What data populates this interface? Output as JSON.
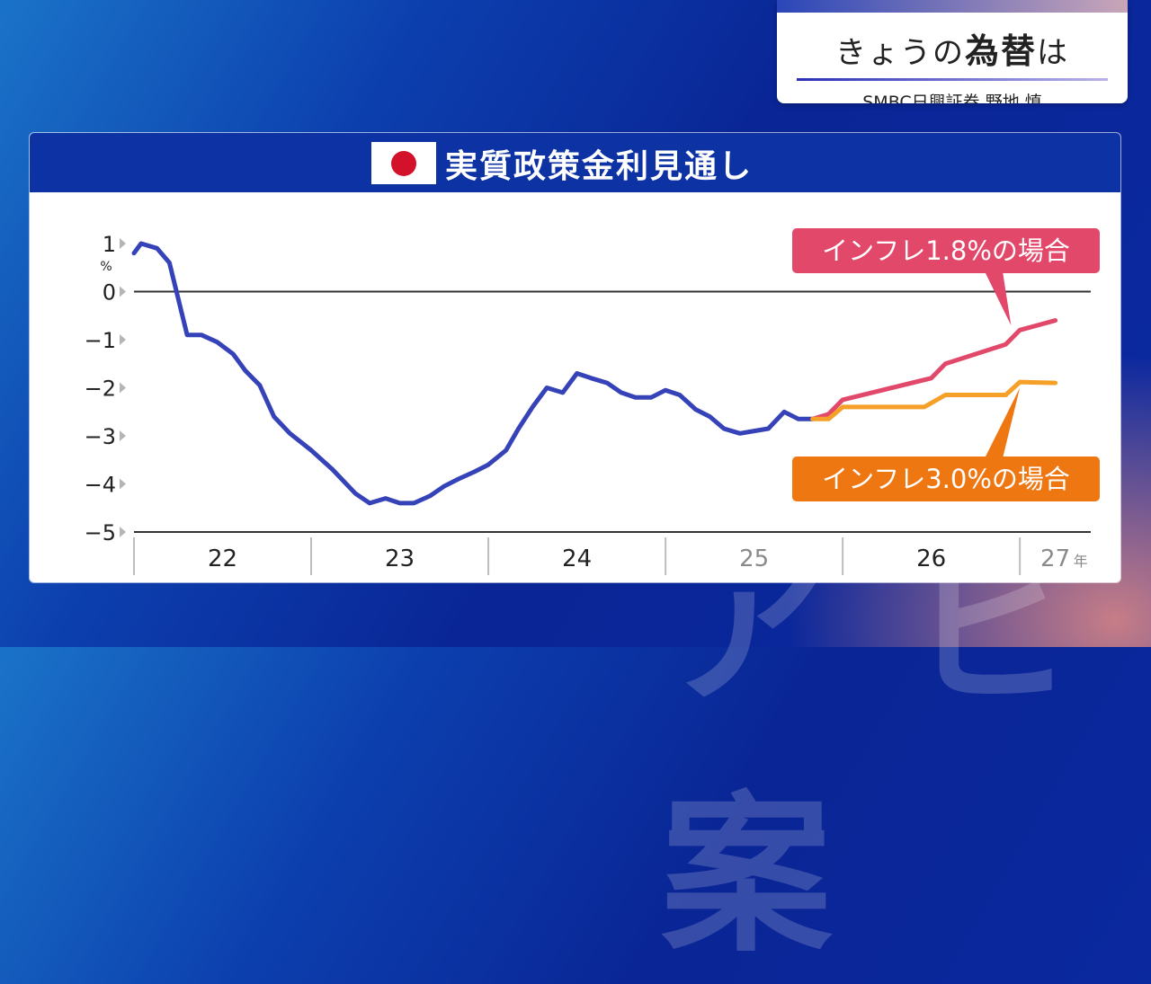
{
  "corner": {
    "title_prefix": "きょうの",
    "title_bold": "為替",
    "title_suffix": "は",
    "subtitle": "SMBC日興証券 野地 慎"
  },
  "watermark": "ア ビ 案",
  "colors": {
    "header_bg": "#0d32a3",
    "history_line": "#3542b8",
    "scenario_high": "#e2486a",
    "scenario_low": "#f5a028",
    "callout_low_bg": "#ee7712",
    "flag_red": "#d3112b"
  },
  "chart_data": {
    "type": "line",
    "title": "実質政策金利見通し",
    "flag_icon": "japan-flag-icon",
    "ylim": [
      -5,
      1
    ],
    "yticks": [
      {
        "value": 1,
        "label": "1"
      },
      {
        "value": 0,
        "label": "0"
      },
      {
        "value": -1,
        "label": "−1"
      },
      {
        "value": -2,
        "label": "−2"
      },
      {
        "value": -3,
        "label": "−3"
      },
      {
        "value": -4,
        "label": "−4"
      },
      {
        "value": -5,
        "label": "−5"
      }
    ],
    "yunit": "%",
    "xlim": [
      2022.0,
      2027.4
    ],
    "xticks": [
      {
        "label": "22",
        "pos": 2022.5,
        "muted": false
      },
      {
        "label": "23",
        "pos": 2023.5,
        "muted": false
      },
      {
        "label": "24",
        "pos": 2024.5,
        "muted": false
      },
      {
        "label": "25",
        "pos": 2025.5,
        "muted": true
      },
      {
        "label": "26",
        "pos": 2026.5,
        "muted": false
      },
      {
        "label": "27",
        "pos": 2027.2,
        "muted": true
      }
    ],
    "xunit": "年",
    "year_dividers": [
      2023,
      2024,
      2025,
      2026,
      2027
    ],
    "zero_line": true,
    "series": [
      {
        "color": "#3542b8",
        "points": [
          [
            2022.0,
            0.8
          ],
          [
            2022.04,
            1.0
          ],
          [
            2022.13,
            0.9
          ],
          [
            2022.2,
            0.6
          ],
          [
            2022.3,
            -0.9
          ],
          [
            2022.38,
            -0.9
          ],
          [
            2022.47,
            -1.05
          ],
          [
            2022.56,
            -1.3
          ],
          [
            2022.63,
            -1.65
          ],
          [
            2022.71,
            -1.95
          ],
          [
            2022.79,
            -2.6
          ],
          [
            2022.88,
            -2.95
          ],
          [
            2023.0,
            -3.3
          ],
          [
            2023.12,
            -3.7
          ],
          [
            2023.25,
            -4.2
          ],
          [
            2023.33,
            -4.4
          ],
          [
            2023.42,
            -4.3
          ],
          [
            2023.5,
            -4.4
          ],
          [
            2023.58,
            -4.4
          ],
          [
            2023.67,
            -4.25
          ],
          [
            2023.75,
            -4.05
          ],
          [
            2023.83,
            -3.9
          ],
          [
            2023.92,
            -3.75
          ],
          [
            2024.0,
            -3.6
          ],
          [
            2024.1,
            -3.3
          ],
          [
            2024.17,
            -2.85
          ],
          [
            2024.25,
            -2.4
          ],
          [
            2024.33,
            -2.0
          ],
          [
            2024.42,
            -2.1
          ],
          [
            2024.5,
            -1.7
          ],
          [
            2024.58,
            -1.8
          ],
          [
            2024.67,
            -1.9
          ],
          [
            2024.75,
            -2.1
          ],
          [
            2024.83,
            -2.2
          ],
          [
            2024.92,
            -2.2
          ],
          [
            2025.0,
            -2.05
          ],
          [
            2025.08,
            -2.15
          ],
          [
            2025.17,
            -2.45
          ],
          [
            2025.25,
            -2.6
          ],
          [
            2025.33,
            -2.85
          ],
          [
            2025.42,
            -2.95
          ],
          [
            2025.5,
            -2.9
          ],
          [
            2025.58,
            -2.85
          ],
          [
            2025.67,
            -2.5
          ],
          [
            2025.75,
            -2.65
          ],
          [
            2025.83,
            -2.65
          ]
        ]
      },
      {
        "color": "#e2486a",
        "points": [
          [
            2025.83,
            -2.65
          ],
          [
            2025.92,
            -2.55
          ],
          [
            2026.0,
            -2.25
          ],
          [
            2026.5,
            -1.8
          ],
          [
            2026.58,
            -1.5
          ],
          [
            2026.92,
            -1.1
          ],
          [
            2027.0,
            -0.8
          ],
          [
            2027.2,
            -0.6
          ]
        ]
      },
      {
        "color": "#f5a028",
        "points": [
          [
            2025.83,
            -2.65
          ],
          [
            2025.92,
            -2.65
          ],
          [
            2026.0,
            -2.4
          ],
          [
            2026.46,
            -2.4
          ],
          [
            2026.58,
            -2.15
          ],
          [
            2026.92,
            -2.15
          ],
          [
            2027.0,
            -1.88
          ],
          [
            2027.2,
            -1.9
          ]
        ]
      }
    ],
    "annotations": [
      {
        "text": "インフレ1.8%の場合",
        "bg": "#e2486a",
        "pointer_to": [
          2026.95,
          -0.7
        ]
      },
      {
        "text": "インフレ3.0%の場合",
        "bg": "#ee7712",
        "pointer_to": [
          2027.0,
          -2.0
        ]
      }
    ]
  }
}
